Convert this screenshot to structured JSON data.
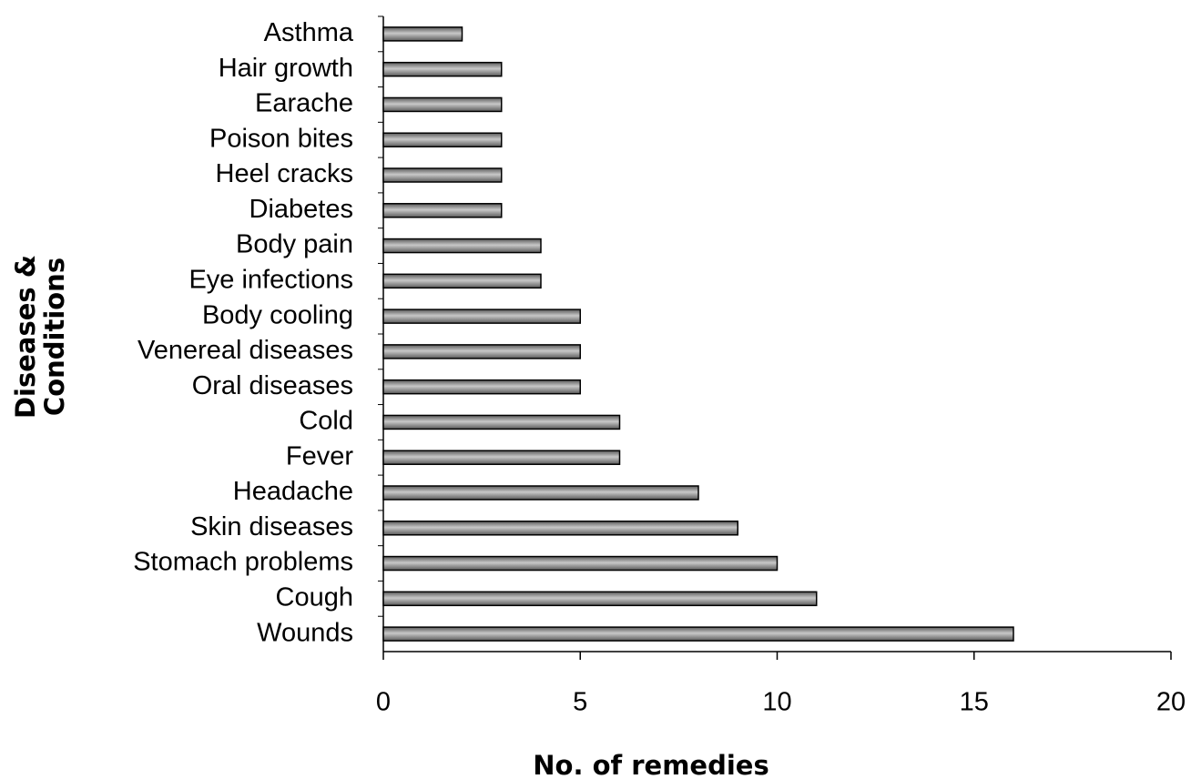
{
  "chart_data": {
    "type": "barh",
    "x_label": "No. of remedies",
    "y_label": [
      "Diseases  &",
      "Conditions"
    ],
    "categories": [
      "Asthma",
      "Hair growth",
      "Earache",
      "Poison bites",
      "Heel cracks",
      "Diabetes",
      "Body pain",
      "Eye infections",
      "Body cooling",
      "Venereal diseases",
      "Oral diseases",
      "Cold",
      "Fever",
      "Headache",
      "Skin diseases",
      "Stomach problems",
      "Cough",
      "Wounds"
    ],
    "values": [
      2,
      3,
      3,
      3,
      3,
      3,
      4,
      4,
      5,
      5,
      5,
      6,
      6,
      8,
      9,
      10,
      11,
      16
    ],
    "color": "#8c8c8c",
    "xlim": [
      0,
      20
    ],
    "xticks": [
      0,
      5,
      10,
      15,
      20
    ],
    "grid": false
  }
}
